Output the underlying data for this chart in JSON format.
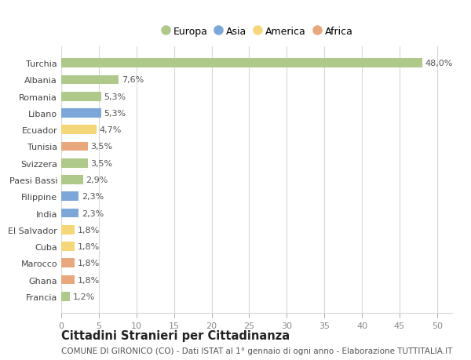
{
  "countries": [
    "Francia",
    "Ghana",
    "Marocco",
    "Cuba",
    "El Salvador",
    "India",
    "Filippine",
    "Paesi Bassi",
    "Svizzera",
    "Tunisia",
    "Ecuador",
    "Libano",
    "Romania",
    "Albania",
    "Turchia"
  ],
  "values": [
    1.2,
    1.8,
    1.8,
    1.8,
    1.8,
    2.3,
    2.3,
    2.9,
    3.5,
    3.5,
    4.7,
    5.3,
    5.3,
    7.6,
    48.0
  ],
  "labels": [
    "1,2%",
    "1,8%",
    "1,8%",
    "1,8%",
    "1,8%",
    "2,3%",
    "2,3%",
    "2,9%",
    "3,5%",
    "3,5%",
    "4,7%",
    "5,3%",
    "5,3%",
    "7,6%",
    "48,0%"
  ],
  "colors": [
    "#aec98a",
    "#e8a87c",
    "#e8a87c",
    "#f5d77a",
    "#f5d77a",
    "#7ca7d8",
    "#7ca7d8",
    "#aec98a",
    "#aec98a",
    "#e8a87c",
    "#f5d77a",
    "#7ca7d8",
    "#aec98a",
    "#aec98a",
    "#aec98a"
  ],
  "legend": {
    "Europa": "#aec98a",
    "Asia": "#7ca7d8",
    "America": "#f5d77a",
    "Africa": "#e8a87c"
  },
  "xlim": [
    0,
    52
  ],
  "xticks": [
    0,
    5,
    10,
    15,
    20,
    25,
    30,
    35,
    40,
    45,
    50
  ],
  "title": "Cittadini Stranieri per Cittadinanza",
  "subtitle": "COMUNE DI GIRONICO (CO) - Dati ISTAT al 1° gennaio di ogni anno - Elaborazione TUTTITALIA.IT",
  "background_color": "#ffffff",
  "grid_color": "#d8d8d8",
  "bar_height": 0.55,
  "label_fontsize": 8,
  "tick_fontsize": 8,
  "title_fontsize": 10.5,
  "subtitle_fontsize": 7.5
}
